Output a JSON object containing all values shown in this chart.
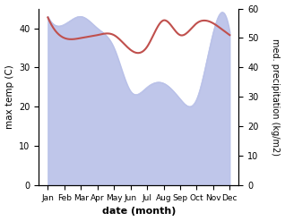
{
  "months": [
    "Jan",
    "Feb",
    "Mar",
    "Apr",
    "May",
    "Jun",
    "Jul",
    "Aug",
    "Sep",
    "Oct",
    "Nov",
    "Dec"
  ],
  "max_temp": [
    43,
    41,
    43,
    40,
    35,
    24,
    25,
    26,
    22,
    22,
    39,
    39
  ],
  "precipitation": [
    57,
    50,
    50,
    51,
    51,
    46,
    47,
    56,
    51,
    55,
    55,
    51
  ],
  "temp_fill_color": "#b8c0e8",
  "precip_color": "#c0504d",
  "ylabel_left": "max temp (C)",
  "ylabel_right": "med. precipitation (kg/m2)",
  "xlabel": "date (month)",
  "ylim_left": [
    0,
    45
  ],
  "ylim_right": [
    0,
    60
  ],
  "yticks_left": [
    0,
    10,
    20,
    30,
    40
  ],
  "yticks_right": [
    0,
    10,
    20,
    30,
    40,
    50,
    60
  ]
}
